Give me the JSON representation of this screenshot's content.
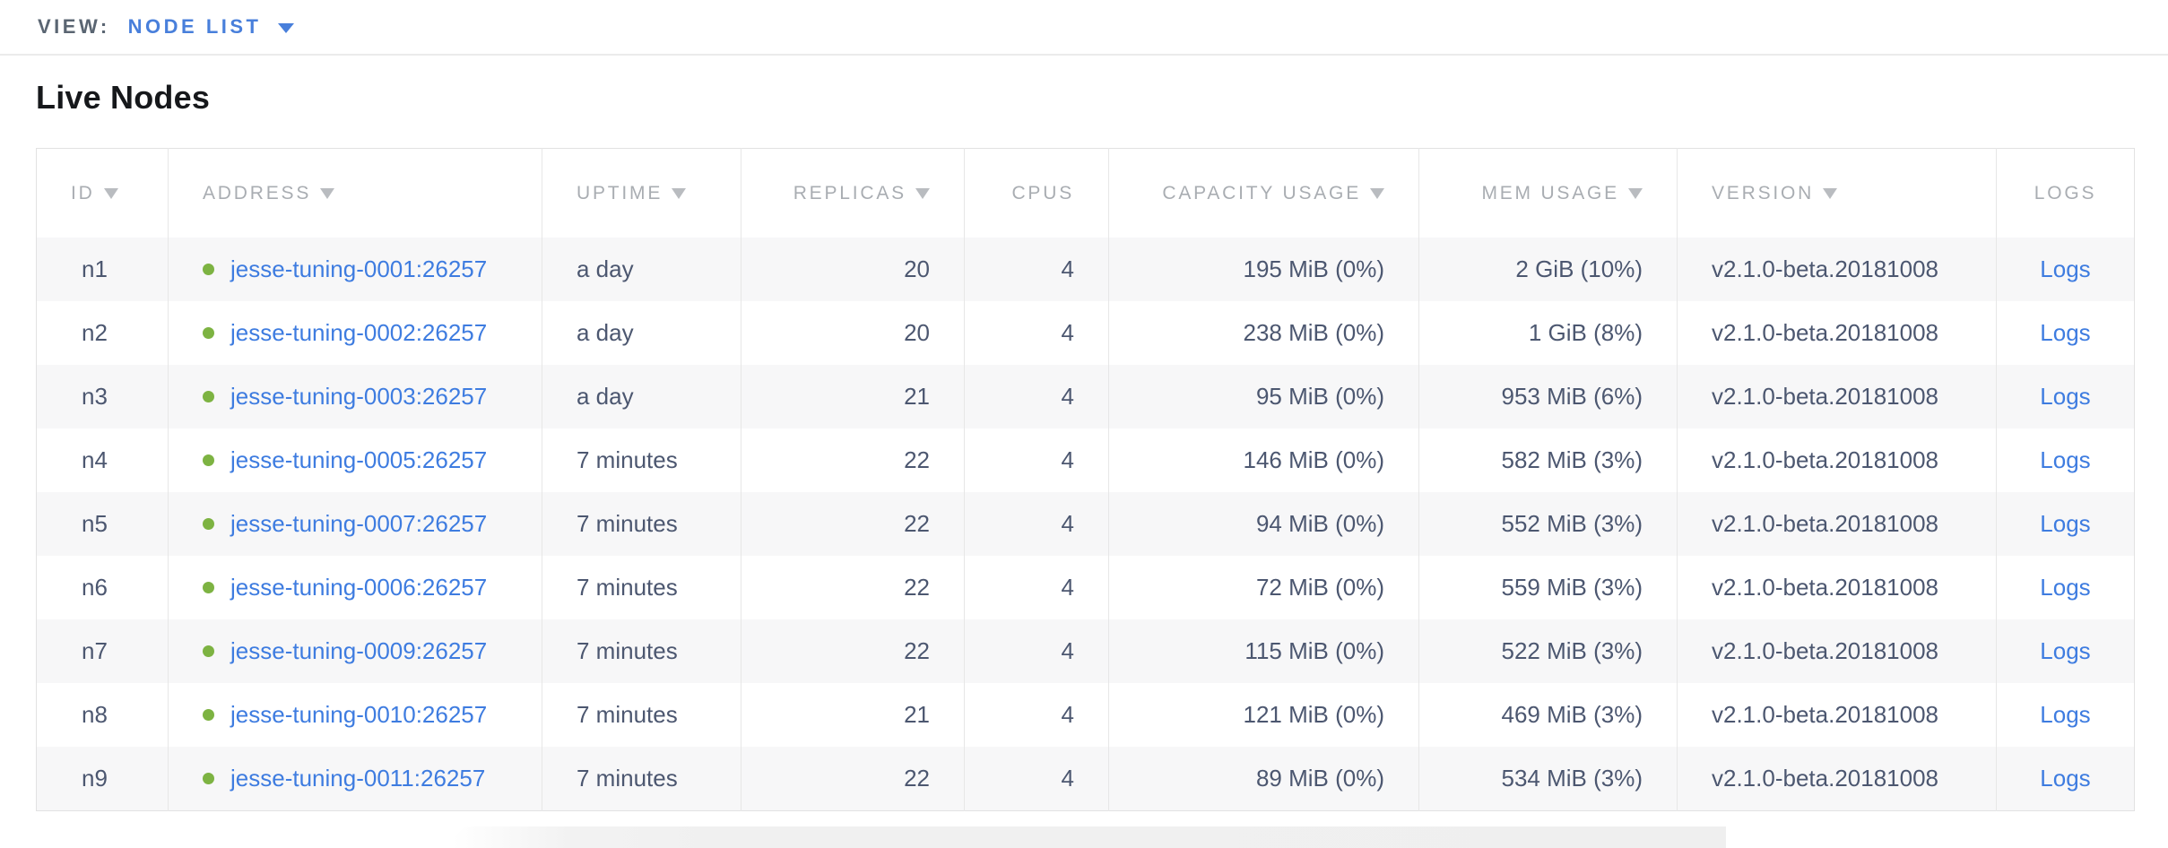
{
  "view_bar": {
    "label": "VIEW:",
    "selected_view": "NODE LIST"
  },
  "page": {
    "title": "Live Nodes"
  },
  "table": {
    "columns": [
      {
        "key": "id",
        "label": "ID",
        "sortable": true,
        "align": "left"
      },
      {
        "key": "address",
        "label": "ADDRESS",
        "sortable": true,
        "align": "left"
      },
      {
        "key": "uptime",
        "label": "UPTIME",
        "sortable": true,
        "align": "left"
      },
      {
        "key": "replicas",
        "label": "REPLICAS",
        "sortable": true,
        "align": "right"
      },
      {
        "key": "cpus",
        "label": "CPUS",
        "sortable": false,
        "align": "right"
      },
      {
        "key": "capacity",
        "label": "CAPACITY USAGE",
        "sortable": true,
        "align": "right"
      },
      {
        "key": "mem",
        "label": "MEM USAGE",
        "sortable": true,
        "align": "right"
      },
      {
        "key": "version",
        "label": "VERSION",
        "sortable": true,
        "align": "left"
      },
      {
        "key": "logs",
        "label": "LOGS",
        "sortable": false,
        "align": "center"
      }
    ],
    "rows": [
      {
        "id": "n1",
        "status_icon": "live-green-dot",
        "address": "jesse-tuning-0001:26257",
        "uptime": "a day",
        "replicas": "20",
        "cpus": "4",
        "capacity": "195 MiB (0%)",
        "mem": "2 GiB (10%)",
        "version": "v2.1.0-beta.20181008",
        "logs": "Logs"
      },
      {
        "id": "n2",
        "status_icon": "live-green-dot",
        "address": "jesse-tuning-0002:26257",
        "uptime": "a day",
        "replicas": "20",
        "cpus": "4",
        "capacity": "238 MiB (0%)",
        "mem": "1 GiB (8%)",
        "version": "v2.1.0-beta.20181008",
        "logs": "Logs"
      },
      {
        "id": "n3",
        "status_icon": "live-green-dot",
        "address": "jesse-tuning-0003:26257",
        "uptime": "a day",
        "replicas": "21",
        "cpus": "4",
        "capacity": "95 MiB (0%)",
        "mem": "953 MiB (6%)",
        "version": "v2.1.0-beta.20181008",
        "logs": "Logs"
      },
      {
        "id": "n4",
        "status_icon": "live-green-dot",
        "address": "jesse-tuning-0005:26257",
        "uptime": "7 minutes",
        "replicas": "22",
        "cpus": "4",
        "capacity": "146 MiB (0%)",
        "mem": "582 MiB (3%)",
        "version": "v2.1.0-beta.20181008",
        "logs": "Logs"
      },
      {
        "id": "n5",
        "status_icon": "live-green-dot",
        "address": "jesse-tuning-0007:26257",
        "uptime": "7 minutes",
        "replicas": "22",
        "cpus": "4",
        "capacity": "94 MiB (0%)",
        "mem": "552 MiB (3%)",
        "version": "v2.1.0-beta.20181008",
        "logs": "Logs"
      },
      {
        "id": "n6",
        "status_icon": "live-green-dot",
        "address": "jesse-tuning-0006:26257",
        "uptime": "7 minutes",
        "replicas": "22",
        "cpus": "4",
        "capacity": "72 MiB (0%)",
        "mem": "559 MiB (3%)",
        "version": "v2.1.0-beta.20181008",
        "logs": "Logs"
      },
      {
        "id": "n7",
        "status_icon": "live-green-dot",
        "address": "jesse-tuning-0009:26257",
        "uptime": "7 minutes",
        "replicas": "22",
        "cpus": "4",
        "capacity": "115 MiB (0%)",
        "mem": "522 MiB (3%)",
        "version": "v2.1.0-beta.20181008",
        "logs": "Logs"
      },
      {
        "id": "n8",
        "status_icon": "live-green-dot",
        "address": "jesse-tuning-0010:26257",
        "uptime": "7 minutes",
        "replicas": "21",
        "cpus": "4",
        "capacity": "121 MiB (0%)",
        "mem": "469 MiB (3%)",
        "version": "v2.1.0-beta.20181008",
        "logs": "Logs"
      },
      {
        "id": "n9",
        "status_icon": "live-green-dot",
        "address": "jesse-tuning-0011:26257",
        "uptime": "7 minutes",
        "replicas": "22",
        "cpus": "4",
        "capacity": "89 MiB (0%)",
        "mem": "534 MiB (3%)",
        "version": "v2.1.0-beta.20181008",
        "logs": "Logs"
      }
    ]
  },
  "colors": {
    "accent_blue": "#487fdb",
    "link_blue": "#3e7ce0",
    "live_green": "#7db342",
    "header_text": "#a9adb2",
    "cell_text": "#4c5770",
    "title_text": "#16181b",
    "row_stripe": "#f7f7f8",
    "table_border": "#e2e2e2"
  }
}
